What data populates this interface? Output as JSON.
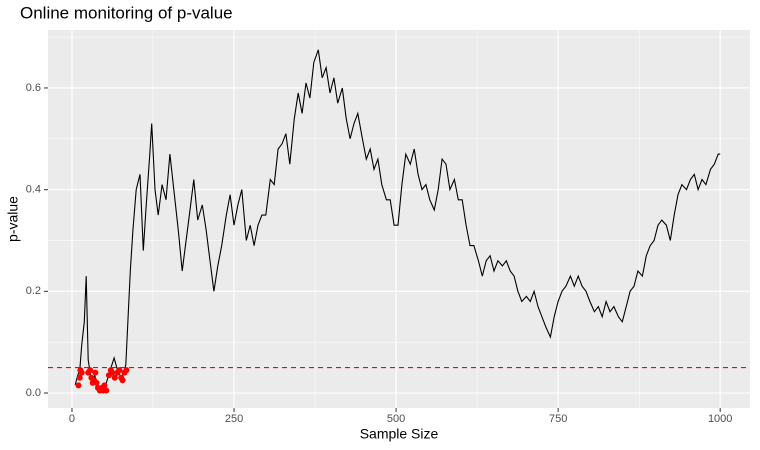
{
  "chart_data": {
    "type": "line",
    "title": "Online monitoring of p-value",
    "x_label": "Sample Size",
    "y_label": "p-value",
    "xlim": [
      -37,
      1046
    ],
    "ylim": [
      -0.0295,
      0.714
    ],
    "xticks": [
      0,
      250,
      500,
      750,
      1000
    ],
    "yticks": [
      {
        "value": 0,
        "label": "0.0"
      },
      0.2,
      0.4,
      0.6
    ],
    "minor_grid": {
      "x": [
        125,
        375,
        625,
        875
      ],
      "y": [
        0.1,
        0.3,
        0.5,
        0.7
      ]
    },
    "grid": true,
    "line": {
      "color": "#000000",
      "x": [
        5,
        9,
        12,
        15,
        19,
        22,
        25,
        28,
        31,
        35,
        40,
        46,
        52,
        59,
        65,
        71,
        77,
        83,
        90,
        94,
        99,
        105,
        110,
        114,
        120,
        123,
        128,
        133,
        139,
        145,
        151,
        157,
        164,
        170,
        176,
        182,
        188,
        194,
        201,
        207,
        213,
        219,
        225,
        231,
        238,
        244,
        250,
        256,
        262,
        269,
        275,
        281,
        287,
        293,
        299,
        306,
        312,
        318,
        324,
        330,
        336,
        343,
        349,
        355,
        361,
        367,
        373,
        380,
        386,
        392,
        398,
        404,
        410,
        417,
        423,
        429,
        435,
        441,
        448,
        454,
        460,
        466,
        472,
        478,
        485,
        491,
        497,
        503,
        509,
        515,
        522,
        528,
        534,
        540,
        546,
        552,
        559,
        565,
        571,
        577,
        583,
        590,
        596,
        602,
        608,
        614,
        620,
        627,
        633,
        639,
        645,
        651,
        657,
        664,
        670,
        676,
        682,
        688,
        694,
        701,
        707,
        713,
        719,
        725,
        731,
        738,
        744,
        750,
        756,
        762,
        769,
        775,
        781,
        787,
        793,
        799,
        806,
        812,
        818,
        824,
        830,
        836,
        843,
        849,
        855,
        861,
        867,
        873,
        880,
        886,
        892,
        898,
        904,
        910,
        917,
        923,
        929,
        935,
        941,
        948,
        954,
        960,
        966,
        972,
        978,
        985,
        991,
        997,
        1000
      ],
      "y": [
        0.016,
        0.035,
        0.045,
        0.094,
        0.14,
        0.23,
        0.065,
        0.041,
        0.02,
        0.035,
        0.01,
        0.006,
        0.016,
        0.045,
        0.069,
        0.041,
        0.03,
        0.055,
        0.24,
        0.32,
        0.4,
        0.43,
        0.28,
        0.36,
        0.47,
        0.53,
        0.4,
        0.35,
        0.41,
        0.38,
        0.47,
        0.4,
        0.32,
        0.24,
        0.3,
        0.36,
        0.42,
        0.34,
        0.37,
        0.32,
        0.26,
        0.2,
        0.25,
        0.29,
        0.35,
        0.39,
        0.33,
        0.37,
        0.4,
        0.3,
        0.33,
        0.29,
        0.33,
        0.35,
        0.35,
        0.42,
        0.41,
        0.48,
        0.49,
        0.51,
        0.45,
        0.54,
        0.59,
        0.55,
        0.61,
        0.58,
        0.65,
        0.675,
        0.62,
        0.64,
        0.59,
        0.62,
        0.57,
        0.6,
        0.54,
        0.5,
        0.53,
        0.55,
        0.5,
        0.46,
        0.48,
        0.44,
        0.46,
        0.41,
        0.38,
        0.38,
        0.33,
        0.33,
        0.41,
        0.47,
        0.45,
        0.48,
        0.43,
        0.4,
        0.41,
        0.38,
        0.36,
        0.4,
        0.46,
        0.45,
        0.4,
        0.42,
        0.38,
        0.38,
        0.33,
        0.29,
        0.29,
        0.26,
        0.23,
        0.26,
        0.27,
        0.24,
        0.26,
        0.25,
        0.26,
        0.24,
        0.23,
        0.2,
        0.18,
        0.19,
        0.18,
        0.2,
        0.17,
        0.15,
        0.13,
        0.11,
        0.15,
        0.18,
        0.2,
        0.21,
        0.23,
        0.21,
        0.23,
        0.21,
        0.2,
        0.18,
        0.16,
        0.17,
        0.15,
        0.18,
        0.16,
        0.17,
        0.15,
        0.14,
        0.17,
        0.2,
        0.21,
        0.24,
        0.23,
        0.27,
        0.29,
        0.3,
        0.33,
        0.34,
        0.33,
        0.3,
        0.35,
        0.39,
        0.41,
        0.4,
        0.42,
        0.43,
        0.4,
        0.42,
        0.41,
        0.44,
        0.45,
        0.47,
        0.47
      ]
    },
    "points": {
      "color": "#ff0000",
      "x": [
        10,
        12,
        13,
        15,
        25,
        28,
        30,
        32,
        34,
        36,
        38,
        40,
        43,
        46,
        48,
        50,
        53,
        57,
        60,
        62,
        66,
        70,
        73,
        76,
        78,
        81,
        84
      ],
      "y": [
        0.015,
        0.03,
        0.045,
        0.04,
        0.04,
        0.045,
        0.03,
        0.02,
        0.025,
        0.04,
        0.02,
        0.01,
        0.005,
        0.01,
        0.005,
        0.015,
        0.005,
        0.035,
        0.045,
        0.04,
        0.03,
        0.04,
        0.045,
        0.03,
        0.025,
        0.04,
        0.045
      ]
    },
    "hline": {
      "value": 0.05,
      "color": "#ff0000"
    }
  }
}
